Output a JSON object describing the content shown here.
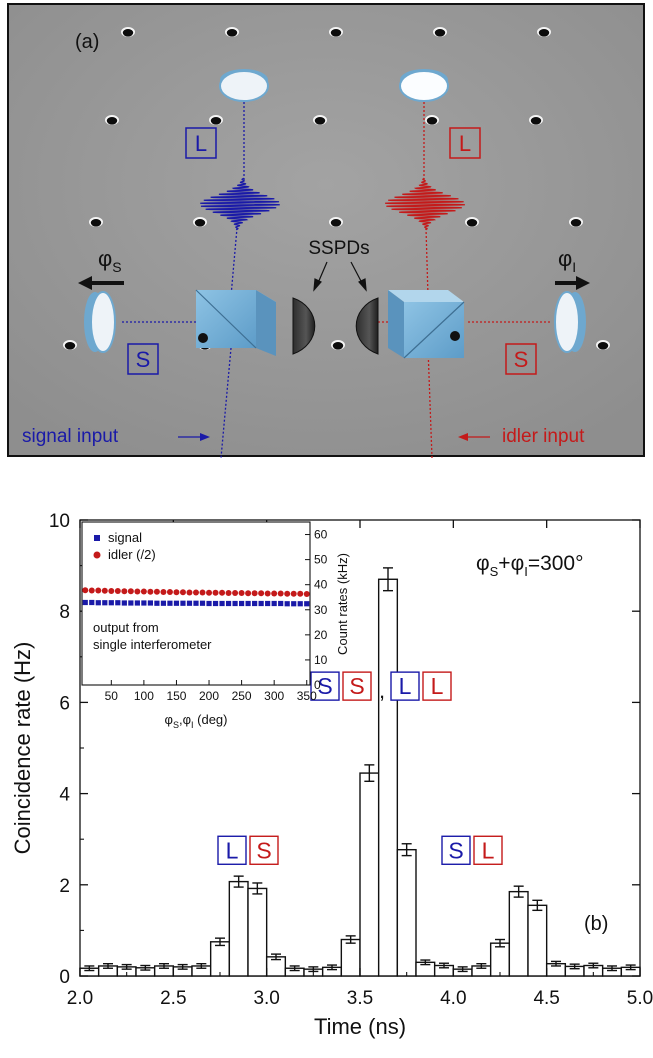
{
  "panel_a": {
    "label": "(a)",
    "mode_long": "L",
    "mode_short": "S",
    "detectors": "SSPDs",
    "phi_symbol": "φ",
    "phi_s_sub": "S",
    "phi_i_sub": "I",
    "signal_input": "signal input",
    "idler_input": "idler input",
    "colors": {
      "signal": "#1a1aa8",
      "idler": "#c41a1a",
      "plate": "#9a9a9a",
      "optic": "#7fb3d6"
    }
  },
  "chart_data": [
    {
      "type": "bar",
      "panel_label": "(b)",
      "xlabel": "Time (ns)",
      "ylabel": "Coincidence rate (Hz)",
      "xlim": [
        2.0,
        5.0
      ],
      "ylim": [
        0,
        10
      ],
      "xticks": [
        "2.0",
        "2.5",
        "3.0",
        "3.5",
        "4.0",
        "4.5",
        "5.0"
      ],
      "yticks": [
        "0",
        "2",
        "4",
        "6",
        "8",
        "10"
      ],
      "annotation": {
        "phi": "φ",
        "sub_s": "S",
        "plus": "+",
        "sub_i": "I",
        "value": "=300°"
      },
      "peak_labels": [
        {
          "boxes": [
            {
              "text": "L",
              "color": "#1a1aa8"
            },
            {
              "text": "S",
              "color": "#c41a1a"
            }
          ],
          "at_x": 2.9,
          "at_y": 2.45
        },
        {
          "boxes": [
            {
              "text": "S",
              "color": "#1a1aa8"
            },
            {
              "text": "S",
              "color": "#c41a1a"
            }
          ],
          "separator": ",",
          "boxes2": [
            {
              "text": "L",
              "color": "#1a1aa8"
            },
            {
              "text": "L",
              "color": "#c41a1a"
            }
          ],
          "at_x": 3.5,
          "at_y": 6.05
        },
        {
          "boxes": [
            {
              "text": "S",
              "color": "#1a1aa8"
            },
            {
              "text": "L",
              "color": "#c41a1a"
            }
          ],
          "at_x": 4.1,
          "at_y": 2.45
        }
      ],
      "bin_width": 0.1,
      "bin_starts": [
        2.0,
        2.1,
        2.2,
        2.3,
        2.4,
        2.5,
        2.6,
        2.7,
        2.8,
        2.9,
        3.0,
        3.1,
        3.2,
        3.3,
        3.4,
        3.5,
        3.6,
        3.7,
        3.8,
        3.9,
        4.0,
        4.1,
        4.2,
        4.3,
        4.4,
        4.5,
        4.6,
        4.7,
        4.8,
        4.9
      ],
      "values": [
        0.17,
        0.22,
        0.2,
        0.18,
        0.22,
        0.2,
        0.22,
        0.75,
        2.07,
        1.92,
        0.42,
        0.17,
        0.15,
        0.19,
        0.8,
        4.45,
        8.7,
        2.77,
        0.3,
        0.23,
        0.15,
        0.22,
        0.72,
        1.85,
        1.55,
        0.27,
        0.21,
        0.23,
        0.17,
        0.19
      ],
      "errors": [
        0.05,
        0.05,
        0.05,
        0.05,
        0.05,
        0.05,
        0.05,
        0.08,
        0.12,
        0.12,
        0.06,
        0.05,
        0.05,
        0.05,
        0.08,
        0.18,
        0.25,
        0.13,
        0.05,
        0.05,
        0.05,
        0.05,
        0.08,
        0.12,
        0.11,
        0.05,
        0.05,
        0.05,
        0.05,
        0.05
      ]
    },
    {
      "type": "scatter",
      "inset": true,
      "xlabel": {
        "phi": "φ",
        "sub_s": "S",
        "comma": ",",
        "sub_i": "I",
        "unit": " (deg)"
      },
      "ylabel_right": "Count rates (kHz)",
      "xlim": [
        5,
        355
      ],
      "ylim": [
        0,
        65
      ],
      "xticks": [
        "50",
        "100",
        "150",
        "200",
        "250",
        "300",
        "350"
      ],
      "yticks": [
        "0",
        "10",
        "20",
        "30",
        "40",
        "50",
        "60"
      ],
      "legend": [
        {
          "name": "signal",
          "marker": "square",
          "color": "#1a1aa8"
        },
        {
          "name": "idler (/2)",
          "marker": "circle",
          "color": "#c41a1a"
        }
      ],
      "note": [
        "output from",
        "single interferometer"
      ],
      "x": [
        10,
        20,
        30,
        40,
        50,
        60,
        70,
        80,
        90,
        100,
        110,
        120,
        130,
        140,
        150,
        160,
        170,
        180,
        190,
        200,
        210,
        220,
        230,
        240,
        250,
        260,
        270,
        280,
        290,
        300,
        310,
        320,
        330,
        340,
        350
      ],
      "series": [
        {
          "name": "signal",
          "color": "#1a1aa8",
          "marker": "square",
          "values": [
            32.9,
            32.9,
            32.8,
            32.8,
            32.8,
            32.8,
            32.7,
            32.7,
            32.7,
            32.7,
            32.7,
            32.6,
            32.6,
            32.6,
            32.6,
            32.6,
            32.6,
            32.6,
            32.6,
            32.5,
            32.5,
            32.5,
            32.5,
            32.5,
            32.5,
            32.5,
            32.5,
            32.5,
            32.5,
            32.5,
            32.5,
            32.4,
            32.4,
            32.4,
            32.4
          ]
        },
        {
          "name": "idler (/2)",
          "color": "#c41a1a",
          "marker": "circle",
          "values": [
            37.8,
            37.7,
            37.7,
            37.6,
            37.5,
            37.5,
            37.4,
            37.4,
            37.3,
            37.3,
            37.2,
            37.2,
            37.1,
            37.1,
            37.0,
            37.0,
            36.9,
            36.9,
            36.9,
            36.8,
            36.8,
            36.8,
            36.7,
            36.7,
            36.7,
            36.6,
            36.6,
            36.6,
            36.5,
            36.5,
            36.5,
            36.4,
            36.4,
            36.4,
            36.3
          ]
        }
      ]
    }
  ]
}
